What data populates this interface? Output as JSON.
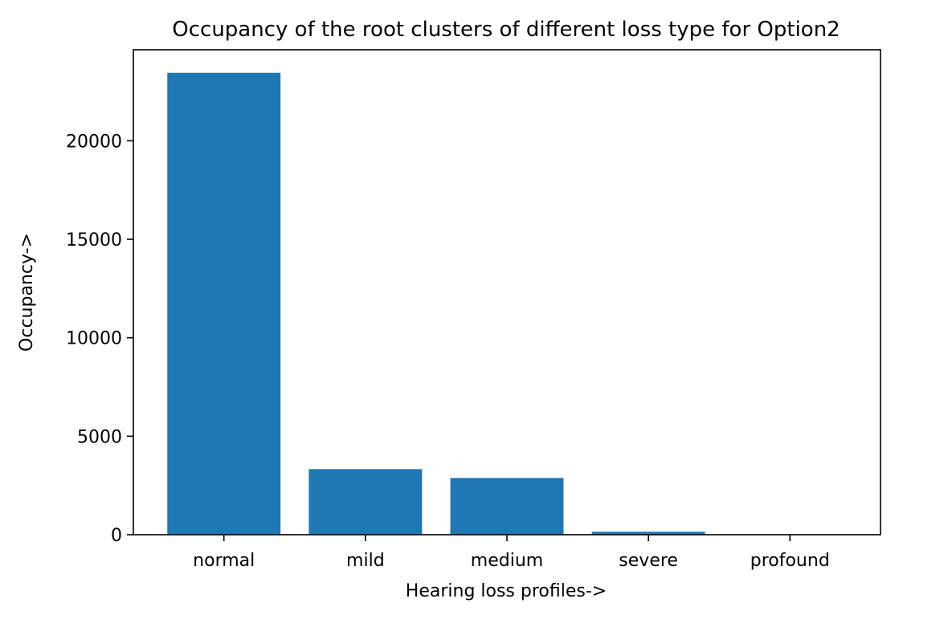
{
  "chart_data": {
    "type": "bar",
    "title": "Occupancy of the root clusters of different loss type for Option2",
    "xlabel": "Hearing loss profiles->",
    "ylabel": "Occupancy->",
    "categories": [
      "normal",
      "mild",
      "medium",
      "severe",
      "profound"
    ],
    "values": [
      23450,
      3330,
      2880,
      150,
      20
    ],
    "ylim": [
      0,
      24620
    ],
    "yticks": [
      0,
      5000,
      10000,
      15000,
      20000
    ],
    "grid": false,
    "bar_color": "#1f77b4"
  }
}
